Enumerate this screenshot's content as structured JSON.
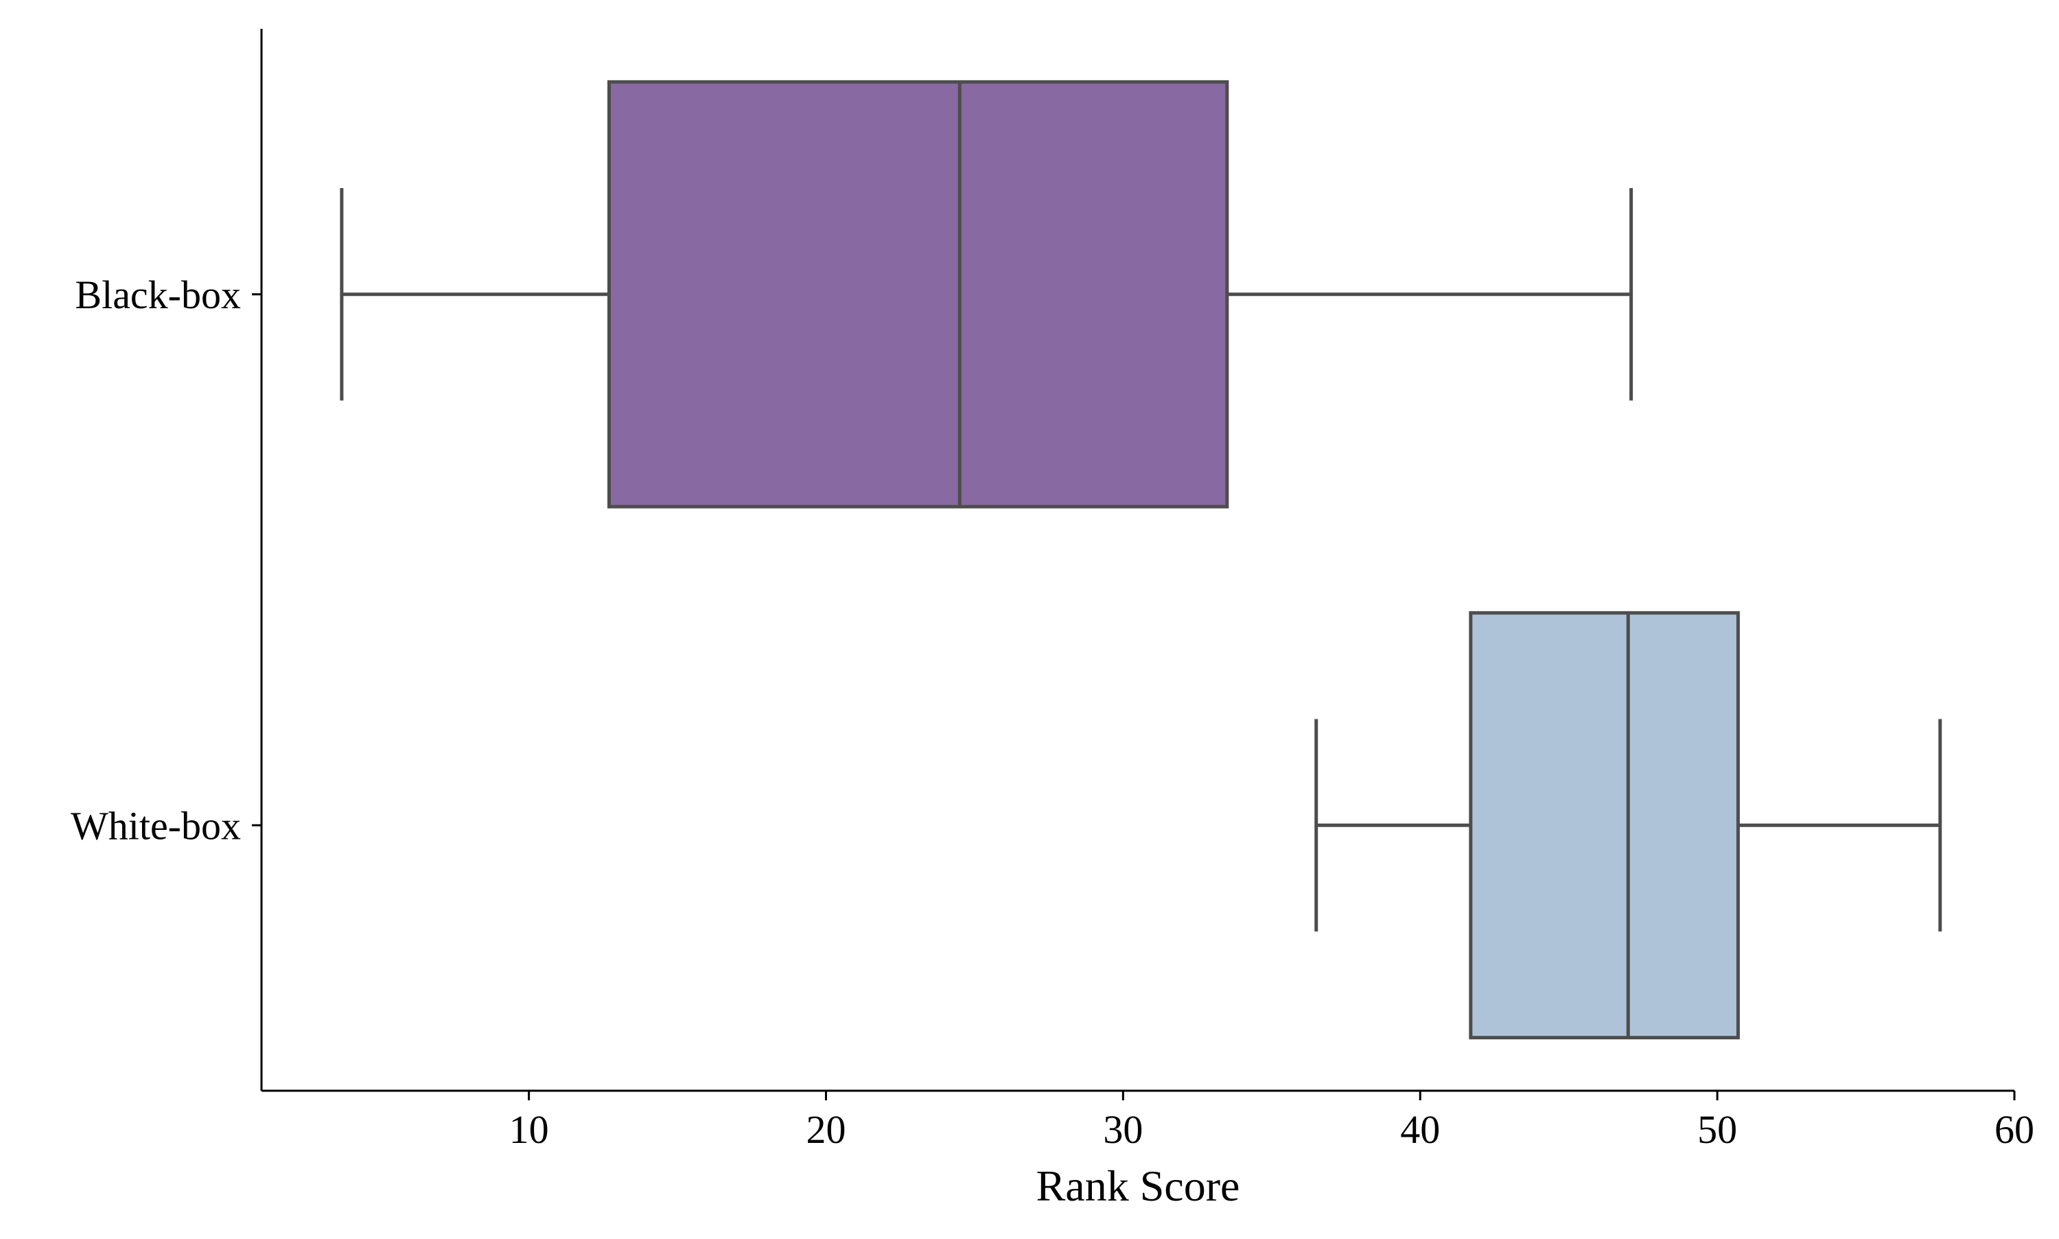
{
  "chart_data": {
    "type": "boxplot",
    "orientation": "horizontal",
    "xlabel": "Rank Score",
    "ylabel": "",
    "xlim": [
      1,
      60
    ],
    "xticks": [
      10,
      20,
      30,
      40,
      50,
      60
    ],
    "grid": false,
    "categories": [
      "Black-box",
      "White-box"
    ],
    "series": [
      {
        "category": "Black-box",
        "whisker_low": 3.7,
        "q1": 12.7,
        "median": 24.5,
        "q3": 33.5,
        "whisker_high": 47.1,
        "color": "#8969a1"
      },
      {
        "category": "White-box",
        "whisker_low": 36.5,
        "q1": 41.7,
        "median": 47.0,
        "q3": 50.7,
        "whisker_high": 57.5,
        "color": "#aec3d7"
      }
    ]
  }
}
